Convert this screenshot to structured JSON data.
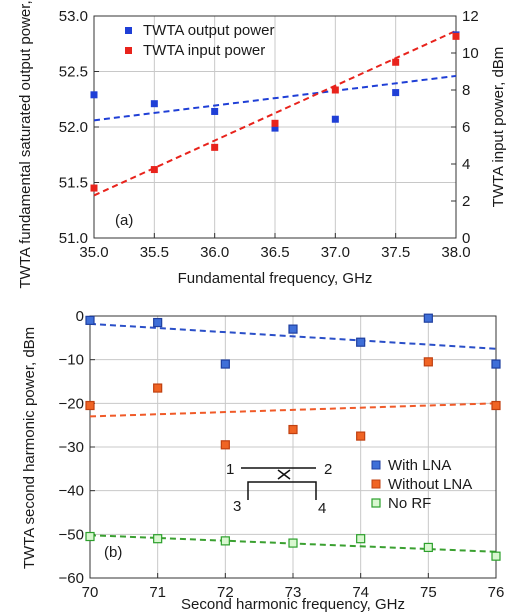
{
  "chart_data": [
    {
      "panel_label": "(a)",
      "type": "scatter",
      "xlabel": "Fundamental frequency, GHz",
      "ylabel_left": "TWTA fundamental saturated output power, dBm",
      "ylabel_right": "TWTA input power, dBm",
      "xlim": [
        35.0,
        38.0
      ],
      "ylim_left": [
        51.0,
        53.0
      ],
      "ylim_right": [
        0,
        12
      ],
      "x_ticks": [
        35.0,
        35.5,
        36.0,
        36.5,
        37.0,
        37.5,
        38.0
      ],
      "x_tick_labels": [
        "35.0",
        "35.5",
        "36.0",
        "36.5",
        "37.0",
        "37.5",
        "38.0"
      ],
      "y_left_ticks": [
        51.0,
        51.5,
        52.0,
        52.5,
        53.0
      ],
      "y_left_tick_labels": [
        "51.0",
        "51.5",
        "52.0",
        "52.5",
        "53.0"
      ],
      "y_right_ticks": [
        0,
        2,
        4,
        6,
        8,
        10,
        12
      ],
      "y_right_tick_labels": [
        "0",
        "2",
        "4",
        "6",
        "8",
        "10",
        "12"
      ],
      "grid": true,
      "legend_position": "top-left",
      "series": [
        {
          "name": "TWTA output power",
          "axis": "left",
          "color": "#1f3fd6",
          "marker": "square-filled",
          "x": [
            35.0,
            35.5,
            36.0,
            36.5,
            37.0,
            37.5,
            38.0
          ],
          "y": [
            52.29,
            52.21,
            52.14,
            51.99,
            52.07,
            52.31,
            52.83
          ],
          "fit": [
            [
              35.0,
              52.06
            ],
            [
              38.0,
              52.46
            ]
          ]
        },
        {
          "name": "TWTA input power",
          "axis": "right",
          "color": "#e8231c",
          "marker": "square-filled",
          "x": [
            35.0,
            35.5,
            36.0,
            36.5,
            37.0,
            37.5,
            38.0
          ],
          "y": [
            2.7,
            3.7,
            4.9,
            6.2,
            8.0,
            9.5,
            10.9
          ],
          "fit": [
            [
              35.0,
              2.3
            ],
            [
              38.0,
              11.2
            ]
          ]
        }
      ]
    },
    {
      "panel_label": "(b)",
      "type": "scatter",
      "xlabel": "Second harmonic frequency, GHz",
      "ylabel": "TWTA second harmonic power, dBm",
      "xlim": [
        70,
        76
      ],
      "ylim": [
        -60,
        0
      ],
      "x_ticks": [
        70,
        71,
        72,
        73,
        74,
        75,
        76
      ],
      "x_tick_labels": [
        "70",
        "71",
        "72",
        "73",
        "74",
        "75",
        "76"
      ],
      "y_ticks": [
        0,
        -10,
        -20,
        -30,
        -40,
        -50,
        -60
      ],
      "y_tick_labels": [
        "0",
        "−10",
        "−20",
        "−30",
        "−40",
        "−50",
        "−60"
      ],
      "grid": true,
      "legend_position": "bottom-right",
      "inset": {
        "port_labels": [
          "1",
          "2",
          "3",
          "4"
        ]
      },
      "series": [
        {
          "name": "With LNA",
          "color": "#3f6fd8",
          "edge_color": "#1f3f9f",
          "marker": "square-filled",
          "x": [
            70,
            71,
            72,
            73,
            74,
            75,
            76
          ],
          "y": [
            -1.0,
            -1.5,
            -11.0,
            -3.0,
            -6.0,
            -0.5,
            -11.0
          ],
          "fit": [
            [
              70,
              -1.8
            ],
            [
              76,
              -7.5
            ]
          ]
        },
        {
          "name": "Without LNA",
          "color": "#f06424",
          "edge_color": "#c04010",
          "marker": "square-filled",
          "x": [
            70,
            71,
            72,
            73,
            74,
            75,
            76
          ],
          "y": [
            -20.5,
            -16.5,
            -29.5,
            -26.0,
            -27.5,
            -10.5,
            -20.5
          ],
          "fit": [
            [
              70,
              -23.0
            ],
            [
              76,
              -20.0
            ]
          ]
        },
        {
          "name": "No RF",
          "color": "#d9f7d0",
          "edge_color": "#2ca02c",
          "marker": "square-open",
          "x": [
            70,
            71,
            72,
            73,
            74,
            75,
            76
          ],
          "y": [
            -50.5,
            -51.0,
            -51.5,
            -52.0,
            -51.0,
            -53.0,
            -55.0
          ],
          "fit": [
            [
              70,
              -50.2
            ],
            [
              76,
              -54.0
            ]
          ]
        }
      ]
    }
  ]
}
